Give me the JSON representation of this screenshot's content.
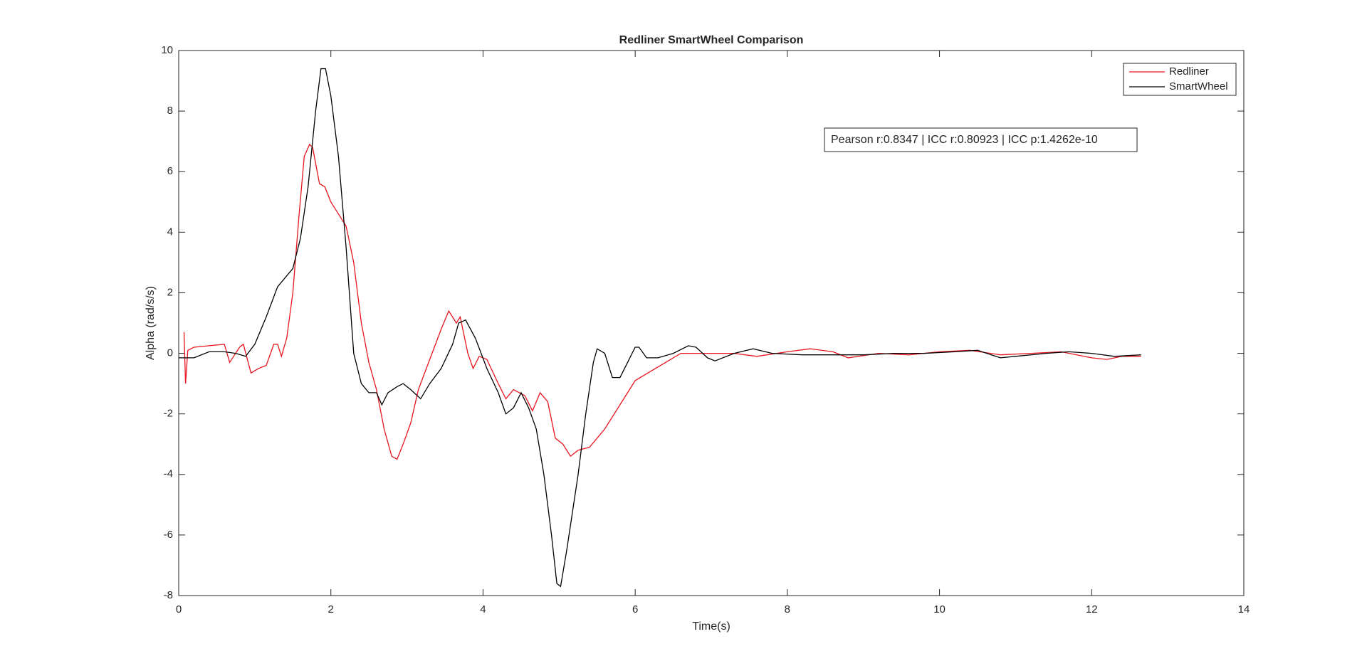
{
  "chart_data": {
    "type": "line",
    "title": "Redliner SmartWheel Comparison",
    "xlabel": "Time(s)",
    "ylabel": "Alpha (rad/s/s)",
    "annotation": "Pearson r:0.8347 |  ICC r:0.80923 |  ICC p:1.4262e-10",
    "xlim": [
      0,
      14
    ],
    "ylim": [
      -8,
      10
    ],
    "xticks": [
      0,
      2,
      4,
      6,
      8,
      10,
      12,
      14
    ],
    "yticks": [
      -8,
      -6,
      -4,
      -2,
      0,
      2,
      4,
      6,
      8,
      10
    ],
    "legend": "top-right",
    "series": [
      {
        "name": "Redliner",
        "color": "#e8141f",
        "x": [
          0.07,
          0.09,
          0.12,
          0.2,
          0.4,
          0.6,
          0.67,
          0.8,
          0.85,
          0.95,
          1.05,
          1.15,
          1.25,
          1.3,
          1.35,
          1.42,
          1.5,
          1.58,
          1.65,
          1.72,
          1.76,
          1.85,
          1.92,
          2.0,
          2.1,
          2.2,
          2.3,
          2.4,
          2.5,
          2.6,
          2.7,
          2.8,
          2.87,
          2.95,
          3.05,
          3.15,
          3.3,
          3.45,
          3.55,
          3.65,
          3.7,
          3.8,
          3.87,
          3.95,
          4.05,
          4.2,
          4.3,
          4.4,
          4.55,
          4.65,
          4.75,
          4.85,
          4.95,
          5.05,
          5.15,
          5.25,
          5.4,
          5.6,
          5.8,
          6.0,
          6.2,
          6.4,
          6.6,
          7.0,
          7.3,
          7.6,
          8.0,
          8.3,
          8.6,
          8.8,
          9.2,
          9.6,
          10.0,
          10.4,
          10.8,
          11.2,
          11.6,
          12.0,
          12.2,
          12.4,
          12.65
        ],
        "values": [
          0.7,
          -1.0,
          0.1,
          0.2,
          0.25,
          0.3,
          -0.3,
          0.2,
          0.3,
          -0.65,
          -0.5,
          -0.4,
          0.3,
          0.3,
          -0.1,
          0.5,
          2.0,
          4.5,
          6.5,
          6.9,
          6.8,
          5.6,
          5.5,
          5.0,
          4.6,
          4.2,
          3.0,
          1.0,
          -0.3,
          -1.2,
          -2.5,
          -3.4,
          -3.5,
          -3.0,
          -2.3,
          -1.2,
          -0.2,
          0.8,
          1.4,
          1.0,
          1.2,
          0.0,
          -0.5,
          -0.1,
          -0.2,
          -1.0,
          -1.5,
          -1.2,
          -1.4,
          -1.9,
          -1.3,
          -1.6,
          -2.8,
          -3.0,
          -3.4,
          -3.2,
          -3.1,
          -2.5,
          -1.7,
          -0.9,
          -0.6,
          -0.3,
          0.0,
          0.0,
          0.0,
          -0.1,
          0.05,
          0.15,
          0.05,
          -0.15,
          0.0,
          -0.05,
          0.05,
          0.1,
          -0.05,
          0.0,
          0.05,
          -0.15,
          -0.2,
          -0.1,
          -0.1
        ]
      },
      {
        "name": "SmartWheel",
        "color": "#000000",
        "x": [
          0,
          0.2,
          0.4,
          0.6,
          0.75,
          0.88,
          1.0,
          1.15,
          1.3,
          1.4,
          1.5,
          1.6,
          1.7,
          1.8,
          1.87,
          1.93,
          2.0,
          2.1,
          2.2,
          2.3,
          2.4,
          2.5,
          2.6,
          2.67,
          2.75,
          2.87,
          2.95,
          3.05,
          3.18,
          3.3,
          3.45,
          3.6,
          3.68,
          3.77,
          3.9,
          4.05,
          4.2,
          4.3,
          4.4,
          4.5,
          4.6,
          4.7,
          4.8,
          4.9,
          4.97,
          5.02,
          5.1,
          5.25,
          5.35,
          5.45,
          5.5,
          5.6,
          5.7,
          5.8,
          5.9,
          6.0,
          6.05,
          6.15,
          6.3,
          6.5,
          6.7,
          6.8,
          6.95,
          7.05,
          7.3,
          7.55,
          7.8,
          8.2,
          8.6,
          9.0,
          9.4,
          9.8,
          10.2,
          10.5,
          10.8,
          11.0,
          11.4,
          11.7,
          12.0,
          12.3,
          12.65
        ],
        "values": [
          -0.15,
          -0.15,
          0.05,
          0.05,
          0.0,
          -0.1,
          0.3,
          1.2,
          2.2,
          2.5,
          2.8,
          3.8,
          5.5,
          8.0,
          9.4,
          9.4,
          8.5,
          6.5,
          3.5,
          0.0,
          -1.0,
          -1.3,
          -1.3,
          -1.7,
          -1.3,
          -1.1,
          -1.0,
          -1.2,
          -1.5,
          -1.0,
          -0.5,
          0.3,
          1.0,
          1.1,
          0.5,
          -0.5,
          -1.3,
          -2.0,
          -1.8,
          -1.3,
          -1.8,
          -2.5,
          -4.0,
          -6.0,
          -7.6,
          -7.7,
          -6.5,
          -4.0,
          -2.0,
          -0.3,
          0.15,
          0.0,
          -0.8,
          -0.8,
          -0.3,
          0.2,
          0.2,
          -0.15,
          -0.15,
          0.0,
          0.25,
          0.2,
          -0.15,
          -0.25,
          0.0,
          0.15,
          0.0,
          -0.05,
          -0.05,
          -0.05,
          0.0,
          0.0,
          0.05,
          0.1,
          -0.15,
          -0.1,
          0.0,
          0.05,
          0.0,
          -0.1,
          -0.05
        ]
      }
    ]
  }
}
